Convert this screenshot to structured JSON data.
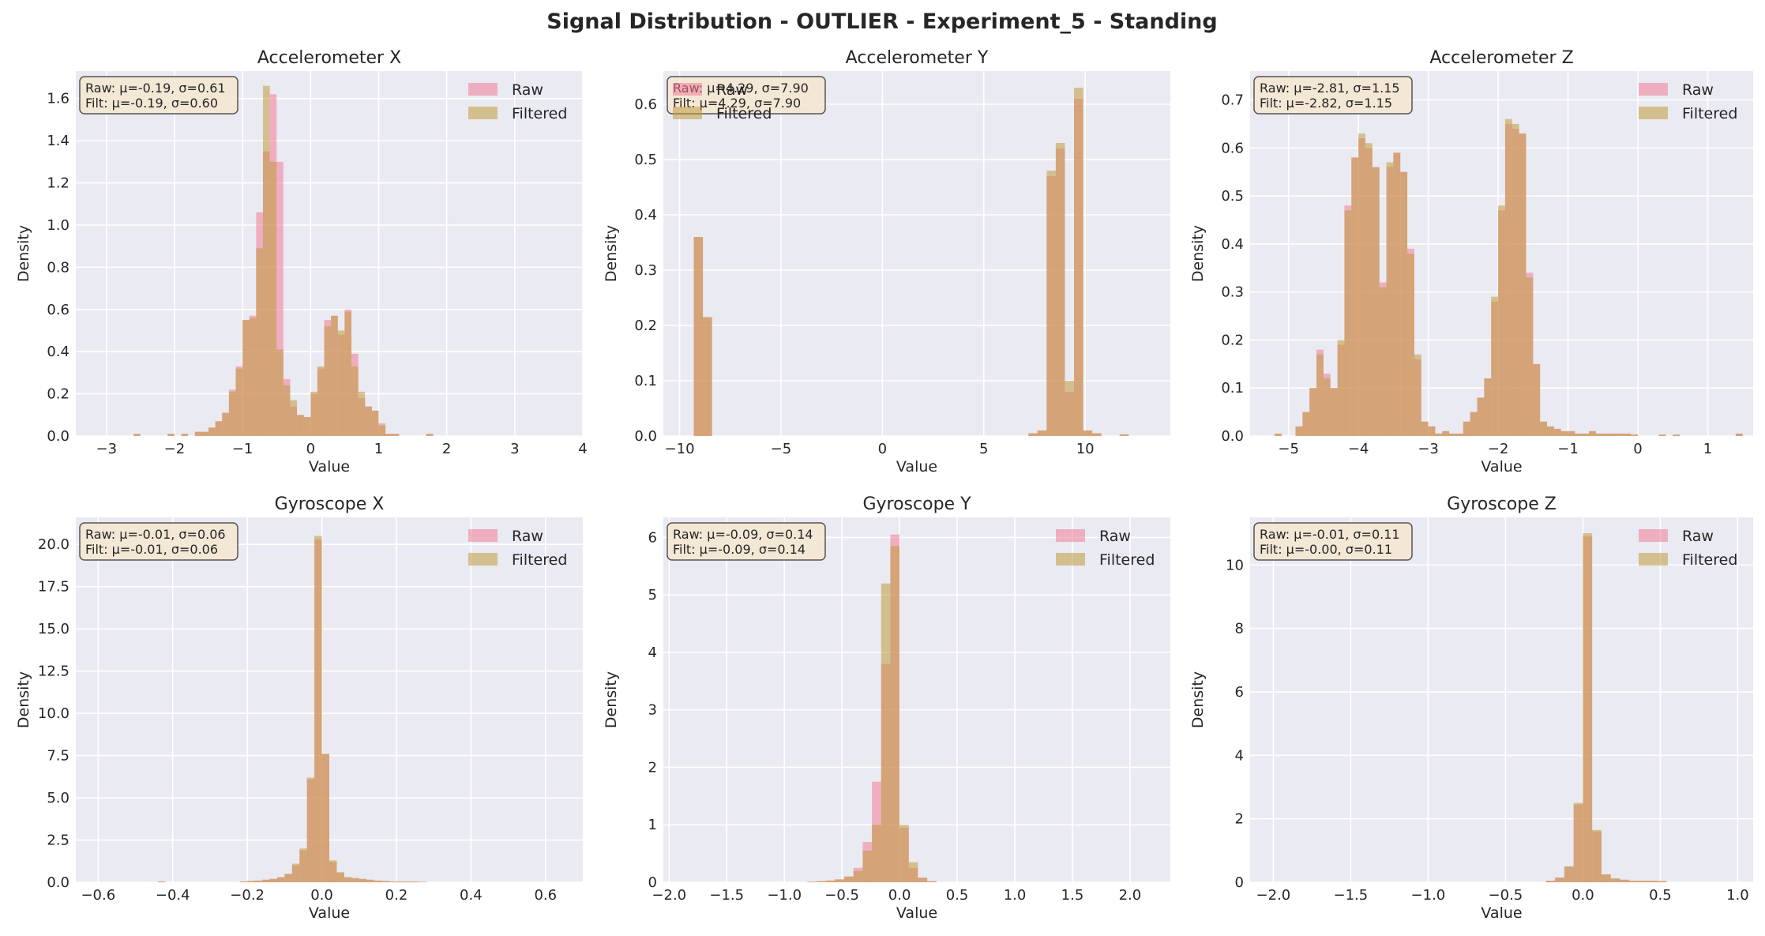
{
  "figure": {
    "suptitle": "Signal Distribution - OUTLIER - Experiment_5 - Standing"
  },
  "colors": {
    "raw": "#f07c96",
    "filtered": "#bf9b3c",
    "axes_bg": "#eaeaf2",
    "grid": "#ffffff",
    "text": "#262626",
    "stat_box": "#f5e6d0"
  },
  "chart_data": [
    {
      "type": "bar",
      "title": "Accelerometer X",
      "xlabel": "Value",
      "ylabel": "Density",
      "xlim": [
        -3.45,
        4.0
      ],
      "ylim": [
        0,
        1.73
      ],
      "xticks": [
        -3,
        -2,
        -1,
        0,
        1,
        2,
        3,
        4
      ],
      "xtick_labels": [
        "−3",
        "−2",
        "−1",
        "0",
        "1",
        "2",
        "3",
        "4"
      ],
      "yticks": [
        0,
        0.2,
        0.4,
        0.6,
        0.8,
        1.0,
        1.2,
        1.4,
        1.6
      ],
      "ytick_labels": [
        "0.0",
        "0.2",
        "0.4",
        "0.6",
        "0.8",
        "1.0",
        "1.2",
        "1.4",
        "1.6"
      ],
      "stats": {
        "raw": "Raw: μ=-0.19, σ=0.61",
        "filtered": "Filt: μ=-0.19, σ=0.60"
      },
      "legend": [
        "Raw",
        "Filtered"
      ],
      "legend_position": "top-right",
      "stats_position": "top-left",
      "bins": [
        -2.6,
        -2.1,
        -1.9,
        -1.7,
        -1.6,
        -1.5,
        -1.4,
        -1.3,
        -1.2,
        -1.1,
        -1.0,
        -0.9,
        -0.8,
        -0.7,
        -0.6,
        -0.5,
        -0.4,
        -0.3,
        -0.2,
        -0.1,
        0.0,
        0.1,
        0.2,
        0.3,
        0.4,
        0.5,
        0.6,
        0.7,
        0.8,
        0.9,
        1.0,
        1.1,
        1.2,
        1.7
      ],
      "bin_width": 0.1,
      "series": [
        {
          "name": "Raw",
          "values": [
            0.01,
            0.01,
            0.01,
            0.02,
            0.02,
            0.04,
            0.07,
            0.11,
            0.22,
            0.33,
            0.55,
            0.57,
            1.06,
            1.35,
            1.62,
            1.3,
            0.27,
            0.14,
            0.1,
            0.09,
            0.2,
            0.32,
            0.55,
            0.57,
            0.48,
            0.6,
            0.39,
            0.18,
            0.14,
            0.12,
            0.06,
            0.01,
            0.01,
            0.01
          ]
        },
        {
          "name": "Filtered",
          "values": [
            0.01,
            0.01,
            0.01,
            0.02,
            0.02,
            0.04,
            0.07,
            0.11,
            0.21,
            0.32,
            0.55,
            0.56,
            0.89,
            1.66,
            1.3,
            0.41,
            0.24,
            0.17,
            0.1,
            0.09,
            0.21,
            0.33,
            0.52,
            0.57,
            0.5,
            0.59,
            0.33,
            0.21,
            0.14,
            0.12,
            0.05,
            0.01,
            0.01,
            0.01
          ]
        }
      ]
    },
    {
      "type": "bar",
      "title": "Accelerometer Y",
      "xlabel": "Value",
      "ylabel": "Density",
      "xlim": [
        -10.8,
        14.2
      ],
      "ylim": [
        0,
        0.66
      ],
      "xticks": [
        -10,
        -5,
        0,
        5,
        10
      ],
      "xtick_labels": [
        "−10",
        "−5",
        "0",
        "5",
        "10"
      ],
      "yticks": [
        0,
        0.1,
        0.2,
        0.3,
        0.4,
        0.5,
        0.6
      ],
      "ytick_labels": [
        "0.0",
        "0.1",
        "0.2",
        "0.3",
        "0.4",
        "0.5",
        "0.6"
      ],
      "stats": {
        "raw": "Raw: μ=4.29, σ=7.90",
        "filtered": "Filt: μ=4.29, σ=7.90"
      },
      "legend": [
        "Raw",
        "Filtered"
      ],
      "legend_position": "top-left",
      "stats_position": "top-left",
      "bins": [
        -9.3,
        -8.85,
        7.2,
        7.65,
        8.1,
        8.55,
        9.0,
        9.45,
        9.9,
        10.35,
        11.7
      ],
      "bin_width": 0.45,
      "series": [
        {
          "name": "Raw",
          "values": [
            0.36,
            0.215,
            0.005,
            0.01,
            0.47,
            0.52,
            0.08,
            0.61,
            0.01,
            0.005,
            0.003
          ]
        },
        {
          "name": "Filtered",
          "values": [
            0.36,
            0.215,
            0.005,
            0.01,
            0.48,
            0.53,
            0.1,
            0.63,
            0.01,
            0.005,
            0.003
          ]
        }
      ]
    },
    {
      "type": "bar",
      "title": "Accelerometer Z",
      "xlabel": "Value",
      "ylabel": "Density",
      "xlim": [
        -5.55,
        1.65
      ],
      "ylim": [
        0,
        0.76
      ],
      "xticks": [
        -5,
        -4,
        -3,
        -2,
        -1,
        0,
        1
      ],
      "xtick_labels": [
        "−5",
        "−4",
        "−3",
        "−2",
        "−1",
        "0",
        "1"
      ],
      "yticks": [
        0,
        0.1,
        0.2,
        0.3,
        0.4,
        0.5,
        0.6,
        0.7
      ],
      "ytick_labels": [
        "0.0",
        "0.1",
        "0.2",
        "0.3",
        "0.4",
        "0.5",
        "0.6",
        "0.7"
      ],
      "stats": {
        "raw": "Raw: μ=-2.81, σ=1.15",
        "filtered": "Filt: μ=-2.82, σ=1.15"
      },
      "legend": [
        "Raw",
        "Filtered"
      ],
      "legend_position": "top-right",
      "stats_position": "top-left",
      "bins": [
        -5.2,
        -4.9,
        -4.8,
        -4.7,
        -4.6,
        -4.5,
        -4.4,
        -4.3,
        -4.2,
        -4.1,
        -4.0,
        -3.9,
        -3.8,
        -3.7,
        -3.6,
        -3.5,
        -3.4,
        -3.3,
        -3.2,
        -3.1,
        -3.0,
        -2.9,
        -2.8,
        -2.7,
        -2.6,
        -2.5,
        -2.4,
        -2.3,
        -2.2,
        -2.1,
        -2.0,
        -1.9,
        -1.8,
        -1.7,
        -1.6,
        -1.5,
        -1.4,
        -1.3,
        -1.2,
        -1.1,
        -1.0,
        -0.9,
        -0.8,
        -0.7,
        -0.6,
        -0.5,
        -0.4,
        -0.3,
        -0.2,
        -0.1,
        0.3,
        0.5,
        1.4
      ],
      "bin_width": 0.1,
      "series": [
        {
          "name": "Raw",
          "values": [
            0.005,
            0.02,
            0.05,
            0.1,
            0.18,
            0.13,
            0.1,
            0.19,
            0.48,
            0.58,
            0.62,
            0.6,
            0.56,
            0.32,
            0.56,
            0.59,
            0.55,
            0.39,
            0.16,
            0.03,
            0.02,
            0.005,
            0.01,
            0.005,
            0.005,
            0.03,
            0.05,
            0.08,
            0.12,
            0.28,
            0.47,
            0.65,
            0.64,
            0.63,
            0.34,
            0.15,
            0.03,
            0.02,
            0.015,
            0.01,
            0.01,
            0.005,
            0.005,
            0.01,
            0.005,
            0.005,
            0.005,
            0.005,
            0.005,
            0.003,
            0.003,
            0.003,
            0.005
          ]
        },
        {
          "name": "Filtered",
          "values": [
            0.005,
            0.02,
            0.05,
            0.1,
            0.17,
            0.12,
            0.1,
            0.2,
            0.47,
            0.58,
            0.63,
            0.61,
            0.56,
            0.31,
            0.57,
            0.59,
            0.55,
            0.38,
            0.17,
            0.03,
            0.02,
            0.005,
            0.01,
            0.005,
            0.005,
            0.03,
            0.05,
            0.08,
            0.12,
            0.29,
            0.48,
            0.66,
            0.65,
            0.63,
            0.33,
            0.15,
            0.03,
            0.02,
            0.015,
            0.01,
            0.01,
            0.005,
            0.005,
            0.01,
            0.005,
            0.005,
            0.005,
            0.005,
            0.005,
            0.003,
            0.003,
            0.003,
            0.005
          ]
        }
      ]
    },
    {
      "type": "bar",
      "title": "Gyroscope X",
      "xlabel": "Value",
      "ylabel": "Density",
      "xlim": [
        -0.66,
        0.7
      ],
      "ylim": [
        0,
        21.6
      ],
      "xticks": [
        -0.6,
        -0.4,
        -0.2,
        0.0,
        0.2,
        0.4,
        0.6
      ],
      "xtick_labels": [
        "−0.6",
        "−0.4",
        "−0.2",
        "0.0",
        "0.2",
        "0.4",
        "0.6"
      ],
      "yticks": [
        0,
        2.5,
        5,
        7.5,
        10,
        12.5,
        15,
        17.5,
        20
      ],
      "ytick_labels": [
        "0.0",
        "2.5",
        "5.0",
        "7.5",
        "10.0",
        "12.5",
        "15.0",
        "17.5",
        "20.0"
      ],
      "stats": {
        "raw": "Raw: μ=-0.01, σ=0.06",
        "filtered": "Filt: μ=-0.01, σ=0.06"
      },
      "legend": [
        "Raw",
        "Filtered"
      ],
      "legend_position": "top-right",
      "stats_position": "top-left",
      "bins": [
        -0.44,
        -0.22,
        -0.2,
        -0.18,
        -0.16,
        -0.14,
        -0.12,
        -0.1,
        -0.08,
        -0.06,
        -0.04,
        -0.02,
        0.0,
        0.02,
        0.04,
        0.06,
        0.08,
        0.1,
        0.12,
        0.14,
        0.16,
        0.18,
        0.2,
        0.22,
        0.24,
        0.26
      ],
      "bin_width": 0.02,
      "series": [
        {
          "name": "Raw",
          "values": [
            0.05,
            0.05,
            0.08,
            0.1,
            0.15,
            0.2,
            0.3,
            0.5,
            1.0,
            1.9,
            6.1,
            20.3,
            7.6,
            1.2,
            0.55,
            0.3,
            0.25,
            0.2,
            0.15,
            0.1,
            0.08,
            0.05,
            0.05,
            0.05,
            0.05,
            0.03
          ]
        },
        {
          "name": "Filtered",
          "values": [
            0.05,
            0.05,
            0.08,
            0.1,
            0.15,
            0.2,
            0.3,
            0.5,
            1.1,
            2.0,
            6.2,
            20.5,
            7.6,
            1.3,
            0.6,
            0.3,
            0.25,
            0.2,
            0.15,
            0.1,
            0.08,
            0.05,
            0.05,
            0.05,
            0.05,
            0.03
          ]
        }
      ]
    },
    {
      "type": "bar",
      "title": "Gyroscope Y",
      "xlabel": "Value",
      "ylabel": "Density",
      "xlim": [
        -2.05,
        2.35
      ],
      "ylim": [
        0,
        6.35
      ],
      "xticks": [
        -2.0,
        -1.5,
        -1.0,
        -0.5,
        0.0,
        0.5,
        1.0,
        1.5,
        2.0
      ],
      "xtick_labels": [
        "−2.0",
        "−1.5",
        "−1.0",
        "−0.5",
        "0.0",
        "0.5",
        "1.0",
        "1.5",
        "2.0"
      ],
      "yticks": [
        0,
        1,
        2,
        3,
        4,
        5,
        6
      ],
      "ytick_labels": [
        "0",
        "1",
        "2",
        "3",
        "4",
        "5",
        "6"
      ],
      "stats": {
        "raw": "Raw: μ=-0.09, σ=0.14",
        "filtered": "Filt: μ=-0.09, σ=0.14"
      },
      "legend": [
        "Raw",
        "Filtered"
      ],
      "legend_position": "top-right",
      "stats_position": "top-left",
      "bins": [
        -0.8,
        -0.72,
        -0.64,
        -0.56,
        -0.48,
        -0.4,
        -0.32,
        -0.24,
        -0.16,
        -0.08,
        0.0,
        0.08,
        0.16,
        0.24
      ],
      "bin_width": 0.08,
      "series": [
        {
          "name": "Raw",
          "values": [
            0.01,
            0.02,
            0.03,
            0.05,
            0.1,
            0.25,
            0.7,
            1.75,
            3.8,
            6.05,
            0.95,
            0.25,
            0.08,
            0.02
          ]
        },
        {
          "name": "Filtered",
          "values": [
            0.01,
            0.02,
            0.03,
            0.05,
            0.1,
            0.2,
            0.55,
            1.0,
            5.2,
            5.85,
            1.0,
            0.35,
            0.08,
            0.02
          ]
        }
      ]
    },
    {
      "type": "bar",
      "title": "Gyroscope Z",
      "xlabel": "Value",
      "ylabel": "Density",
      "xlim": [
        -2.15,
        1.1
      ],
      "ylim": [
        0,
        11.5
      ],
      "xticks": [
        -2.0,
        -1.5,
        -1.0,
        -0.5,
        0.0,
        0.5,
        1.0
      ],
      "xtick_labels": [
        "−2.0",
        "−1.5",
        "−1.0",
        "−0.5",
        "0.0",
        "0.5",
        "1.0"
      ],
      "yticks": [
        0,
        2,
        4,
        6,
        8,
        10
      ],
      "ytick_labels": [
        "0",
        "2",
        "4",
        "6",
        "8",
        "10"
      ],
      "stats": {
        "raw": "Raw: μ=-0.01, σ=0.11",
        "filtered": "Filt: μ=-0.00, σ=0.11"
      },
      "legend": [
        "Raw",
        "Filtered"
      ],
      "legend_position": "top-right",
      "stats_position": "top-left",
      "bins": [
        -0.24,
        -0.18,
        -0.12,
        -0.06,
        0.0,
        0.06,
        0.12,
        0.18,
        0.24,
        0.3,
        0.36,
        0.42,
        0.48
      ],
      "bin_width": 0.06,
      "series": [
        {
          "name": "Raw",
          "values": [
            0.05,
            0.15,
            0.5,
            2.45,
            10.9,
            1.6,
            0.25,
            0.12,
            0.08,
            0.05,
            0.05,
            0.05,
            0.04
          ]
        },
        {
          "name": "Filtered",
          "values": [
            0.05,
            0.15,
            0.5,
            2.5,
            11.0,
            1.65,
            0.25,
            0.12,
            0.08,
            0.05,
            0.05,
            0.05,
            0.04
          ]
        }
      ]
    }
  ]
}
